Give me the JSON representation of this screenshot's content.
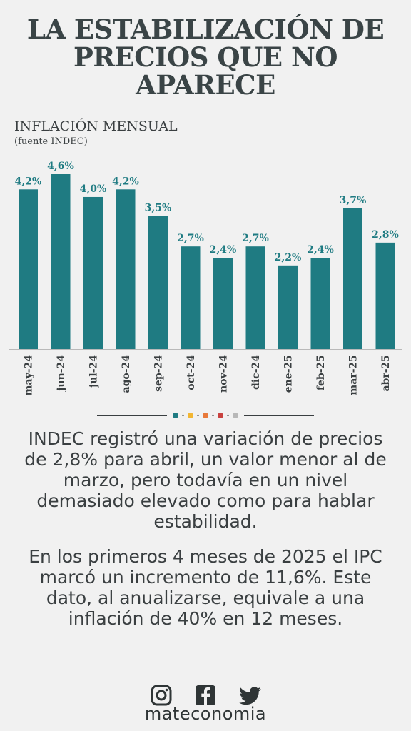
{
  "header": {
    "title": "LA ESTABILIZACIÓN DE PRECIOS QUE NO APARECE",
    "subtitle": "INFLACIÓN MENSUAL",
    "source": "(fuente INDEC)"
  },
  "chart_data": {
    "type": "bar",
    "categories": [
      "may-24",
      "jun-24",
      "jul-24",
      "ago-24",
      "sep-24",
      "oct-24",
      "nov-24",
      "dic-24",
      "ene-25",
      "feb-25",
      "mar-25",
      "abr-25"
    ],
    "values": [
      4.2,
      4.6,
      4.0,
      4.2,
      3.5,
      2.7,
      2.4,
      2.7,
      2.2,
      2.4,
      3.7,
      2.8
    ],
    "value_labels": [
      "4,2%",
      "4,6%",
      "4,0%",
      "4,2%",
      "3,5%",
      "2,7%",
      "2,4%",
      "2,7%",
      "2,2%",
      "2,4%",
      "3,7%",
      "2,8%"
    ],
    "ylim": [
      0,
      4.6
    ],
    "bar_color": "#1f7b82",
    "label_color": "#1f7b82",
    "grid": false,
    "legend": "none"
  },
  "divider": {
    "dot_colors": [
      "#1f7b82",
      "#f2b632",
      "#e8793a",
      "#c8413f",
      "#b8b8b8"
    ]
  },
  "body": {
    "paragraph_1": "INDEC registró una variación de precios de 2,8% para abril, un valor menor al de marzo, pero todavía en un nivel demasiado elevado como para hablar estabilidad.",
    "paragraph_2": "En los primeros 4 meses de 2025 el IPC marcó un incremento de 11,6%. Este dato, al anualizarse, equivale a una inflación de 40% en 12 meses."
  },
  "footer": {
    "icons": [
      "instagram-icon",
      "facebook-icon",
      "twitter-icon"
    ],
    "brand": "mateconomia"
  }
}
